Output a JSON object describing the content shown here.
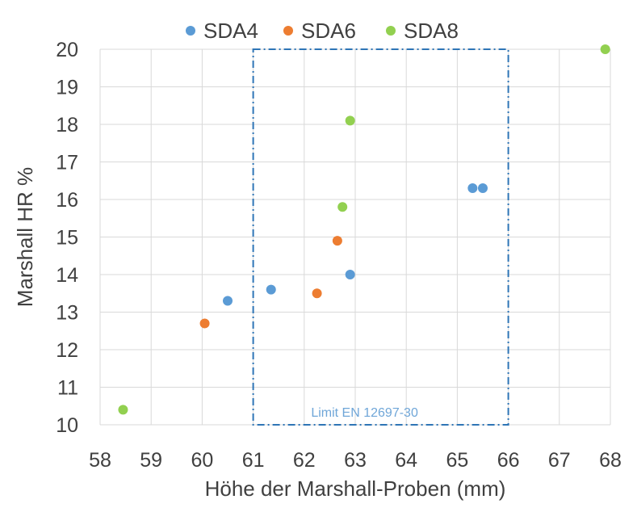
{
  "chart_data": {
    "type": "scatter",
    "title": "",
    "xlabel": "Höhe der Marshall-Proben (mm)",
    "ylabel": "Marshall HR %",
    "xlim": [
      58,
      68
    ],
    "ylim": [
      10,
      20
    ],
    "x_ticks": [
      "58",
      "59",
      "60",
      "61",
      "62",
      "63",
      "64",
      "65",
      "66",
      "67",
      "68"
    ],
    "y_ticks": [
      "10",
      "11",
      "12",
      "13",
      "14",
      "15",
      "16",
      "17",
      "18",
      "19",
      "20"
    ],
    "grid": true,
    "legend_position": "top",
    "series": [
      {
        "name": "SDA4",
        "color": "#5B9BD5",
        "points": [
          {
            "x": 60.5,
            "y": 13.3
          },
          {
            "x": 61.35,
            "y": 13.6
          },
          {
            "x": 62.9,
            "y": 14.0
          },
          {
            "x": 65.3,
            "y": 16.3
          },
          {
            "x": 65.5,
            "y": 16.3
          }
        ]
      },
      {
        "name": "SDA6",
        "color": "#ED7D31",
        "points": [
          {
            "x": 60.05,
            "y": 12.7
          },
          {
            "x": 62.25,
            "y": 13.5
          },
          {
            "x": 62.65,
            "y": 14.9
          }
        ]
      },
      {
        "name": "SDA8",
        "color": "#92D050",
        "points": [
          {
            "x": 58.45,
            "y": 10.4
          },
          {
            "x": 62.75,
            "y": 15.8
          },
          {
            "x": 62.9,
            "y": 18.1
          },
          {
            "x": 67.9,
            "y": 20.0
          }
        ]
      }
    ],
    "annotations": [
      {
        "type": "rect",
        "x_range": [
          61,
          66
        ],
        "y_range": [
          10,
          20
        ],
        "label": "Limit EN 12697-30",
        "color": "#2E75B6"
      }
    ]
  }
}
